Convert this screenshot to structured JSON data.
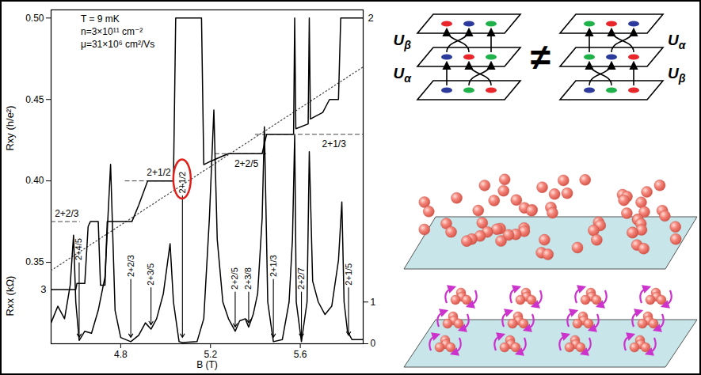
{
  "chart_data": [
    {
      "type": "line",
      "x_label": "B (T)",
      "y_label": "Rxy (h/e²)",
      "info": [
        "T = 9 mK",
        "n=3×10¹¹ cm⁻²",
        "μ=31×10⁶ cm²/Vs"
      ],
      "xlim": [
        4.49,
        5.88
      ],
      "xticks": [
        4.8,
        5.2,
        5.6
      ],
      "ylim": [
        0.3,
        0.505
      ],
      "yticks": [
        {
          "value": 0.35,
          "label": "0.35"
        },
        {
          "value": 0.4,
          "label": "0.40"
        },
        {
          "value": 0.45,
          "label": "0.45"
        },
        {
          "value": 0.5,
          "label": "0.50"
        }
      ],
      "color": "#000000",
      "x": [
        4.49,
        4.6,
        4.605,
        4.64,
        4.655,
        4.665,
        4.7,
        4.71,
        4.73,
        4.74,
        4.85,
        4.88,
        4.92,
        5.035,
        5.045,
        5.16,
        5.17,
        5.2,
        5.25,
        5.28,
        5.43,
        5.45,
        5.57,
        5.575,
        5.58,
        5.635,
        5.64,
        5.645,
        5.7,
        5.73,
        5.77,
        5.78,
        5.88
      ],
      "values": [
        0.3333,
        0.3333,
        0.337,
        0.337,
        0.372,
        0.375,
        0.375,
        0.336,
        0.336,
        0.375,
        0.375,
        0.385,
        0.4,
        0.4,
        0.5,
        0.5,
        0.41,
        0.412,
        0.415,
        0.4167,
        0.4167,
        0.4286,
        0.4286,
        0.5,
        0.432,
        0.435,
        0.5,
        0.438,
        0.442,
        0.45,
        0.45,
        0.5,
        0.5
      ],
      "plateaus": [
        {
          "label": "2+2/3",
          "value": 0.375,
          "x_start": 4.49,
          "x_end": 4.62,
          "label_x": 4.56,
          "label_y": 0.38
        },
        {
          "label": "2+1/2",
          "value": 0.4,
          "x_start": 4.82,
          "x_end": 5.04,
          "label_x": 4.97,
          "label_y": 0.405
        },
        {
          "label": "2+2/5",
          "value": 0.4167,
          "x_start": 5.22,
          "x_end": 5.45,
          "label_x": 5.36,
          "label_y": 0.4105
        },
        {
          "label": "2+1/3",
          "value": 0.4286,
          "x_start": 5.4,
          "x_end": 5.88,
          "label_x": 5.75,
          "label_y": 0.4225
        }
      ],
      "end_labels": [
        {
          "label": "3",
          "value": 0.3333,
          "side": "left"
        },
        {
          "label": "2",
          "value": 0.5,
          "side": "right"
        }
      ],
      "classical_line": {
        "x": [
          4.49,
          5.88
        ],
        "values": [
          0.345,
          0.47
        ]
      }
    },
    {
      "type": "line",
      "y_label": "Rxx (kΩ)",
      "xlim": [
        4.49,
        5.88
      ],
      "ylim": [
        0,
        8
      ],
      "yticks": [
        0,
        1
      ],
      "color": "#000000",
      "x": [
        4.49,
        4.52,
        4.55,
        4.575,
        4.59,
        4.6,
        4.615,
        4.64,
        4.67,
        4.7,
        4.73,
        4.755,
        4.775,
        4.8,
        4.845,
        4.88,
        4.91,
        4.935,
        4.96,
        4.99,
        5.02,
        5.035,
        5.06,
        5.075,
        5.14,
        5.17,
        5.195,
        5.215,
        5.23,
        5.255,
        5.28,
        5.31,
        5.33,
        5.355,
        5.37,
        5.39,
        5.41,
        5.43,
        5.44,
        5.455,
        5.48,
        5.52,
        5.55,
        5.565,
        5.575,
        5.582,
        5.605,
        5.63,
        5.64,
        5.655,
        5.68,
        5.71,
        5.74,
        5.77,
        5.785,
        5.795,
        5.81,
        5.83,
        5.88
      ],
      "values": [
        0.5,
        0.9,
        0.6,
        1.4,
        2.6,
        1.0,
        0.08,
        0.3,
        0.25,
        0.8,
        1.6,
        4.3,
        0.8,
        0.15,
        0.05,
        0.2,
        0.5,
        0.35,
        0.6,
        1.2,
        2.4,
        1.0,
        0.05,
        0.03,
        0.05,
        0.6,
        3.0,
        5.6,
        2.5,
        1.0,
        0.6,
        0.3,
        0.55,
        0.6,
        0.4,
        0.7,
        1.2,
        3.0,
        5.2,
        1.0,
        0.05,
        0.1,
        1.0,
        2.5,
        5.0,
        1.0,
        0.05,
        1.0,
        4.6,
        1.5,
        1.0,
        0.7,
        0.9,
        2.0,
        3.4,
        1.0,
        0.3,
        0.1,
        0.1
      ],
      "annotations": [
        {
          "text": "2+4/5",
          "x": 4.615,
          "y": 2.0,
          "y_tip": 0.15
        },
        {
          "text": "2+2/3",
          "x": 4.845,
          "y": 1.6,
          "y_tip": 0.15
        },
        {
          "text": "2+3/5",
          "x": 4.935,
          "y": 1.4,
          "y_tip": 0.45
        },
        {
          "text": "2+1/2",
          "x": 5.075,
          "y": 3.6,
          "y_tip": 0.15,
          "circled": true
        },
        {
          "text": "2+2/5",
          "x": 5.31,
          "y": 1.3,
          "y_tip": 0.4
        },
        {
          "text": "2+3/8",
          "x": 5.37,
          "y": 1.3,
          "y_tip": 0.5
        },
        {
          "text": "2+1/3",
          "x": 5.48,
          "y": 1.6,
          "y_tip": 0.15
        },
        {
          "text": "2+2/7",
          "x": 5.605,
          "y": 1.3,
          "y_tip": 0.15
        },
        {
          "text": "2+1/5",
          "x": 5.815,
          "y": 1.4,
          "y_tip": 0.2
        }
      ]
    }
  ],
  "diagram": {
    "not_equal": "≠",
    "stacks": [
      {
        "operators": [
          "Uα",
          "Uβ"
        ],
        "planes": [
          [
            "#2b3a9b",
            "#1fb24a",
            "#e8262b"
          ],
          [
            "#2b3a9b",
            "#e8262b",
            "#1fb24a"
          ],
          [
            "#e8262b",
            "#2b3a9b",
            "#1fb24a"
          ]
        ]
      },
      {
        "operators": [
          "Uβ",
          "Uα"
        ],
        "planes": [
          [
            "#2b3a9b",
            "#1fb24a",
            "#e8262b"
          ],
          [
            "#1fb24a",
            "#2b3a9b",
            "#e8262b"
          ],
          [
            "#1fb24a",
            "#e8262b",
            "#2b3a9b"
          ]
        ]
      }
    ]
  }
}
